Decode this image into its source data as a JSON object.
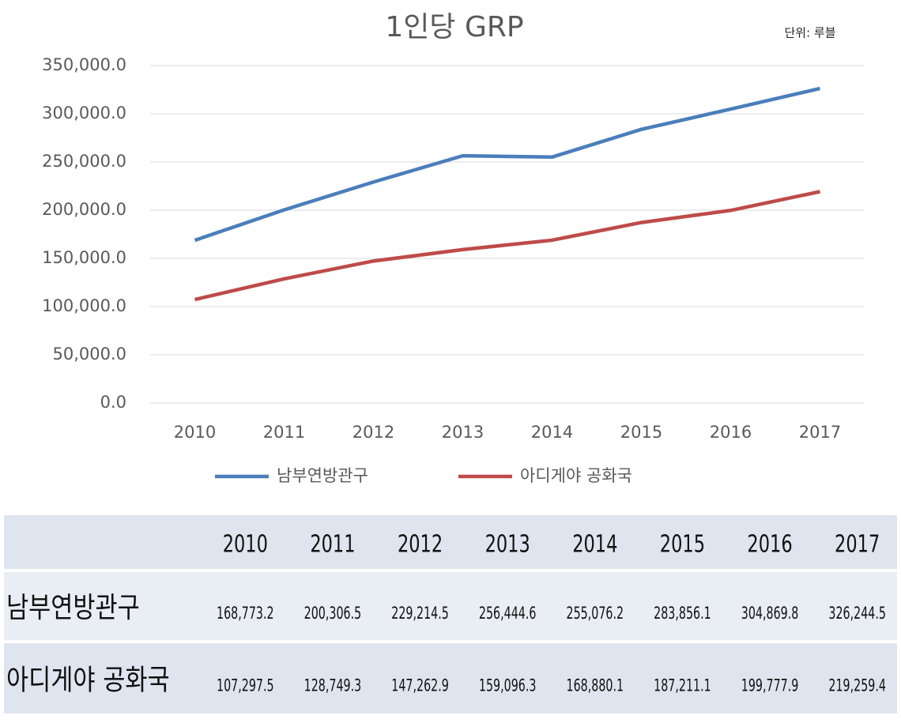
{
  "chart_data": {
    "type": "line",
    "title": "1인당 GRP",
    "unit": "단위: 루블",
    "categories": [
      "2010",
      "2011",
      "2012",
      "2013",
      "2014",
      "2015",
      "2016",
      "2017"
    ],
    "series": [
      {
        "name": "남부연방관구",
        "color": "#4a7ebb",
        "values": [
          168773.2,
          200306.5,
          229214.5,
          256444.6,
          255076.2,
          283856.1,
          304869.8,
          326244.5
        ],
        "value_labels": [
          "168,773.2",
          "200,306.5",
          "229,214.5",
          "256,444.6",
          "255,076.2",
          "283,856.1",
          "304,869.8",
          "326,244.5"
        ]
      },
      {
        "name": "아디게야 공화국",
        "color": "#be4b48",
        "values": [
          107297.5,
          128749.3,
          147262.9,
          159096.3,
          168880.1,
          187211.1,
          199777.9,
          219259.4
        ],
        "value_labels": [
          "107,297.5",
          "128,749.3",
          "147,262.9",
          "159,096.3",
          "168,880.1",
          "187,211.1",
          "199,777.9",
          "219,259.4"
        ]
      }
    ],
    "ylim": [
      0,
      350000
    ],
    "yticks": [
      {
        "value": 0,
        "label": "0.0"
      },
      {
        "value": 50000,
        "label": "50,000.0"
      },
      {
        "value": 100000,
        "label": "100,000.0"
      },
      {
        "value": 150000,
        "label": "150,000.0"
      },
      {
        "value": 200000,
        "label": "200,000.0"
      },
      {
        "value": 250000,
        "label": "250,000.0"
      },
      {
        "value": 300000,
        "label": "300,000.0"
      },
      {
        "value": 350000,
        "label": "350,000.0"
      }
    ],
    "grid": true,
    "legend": "bottom"
  }
}
